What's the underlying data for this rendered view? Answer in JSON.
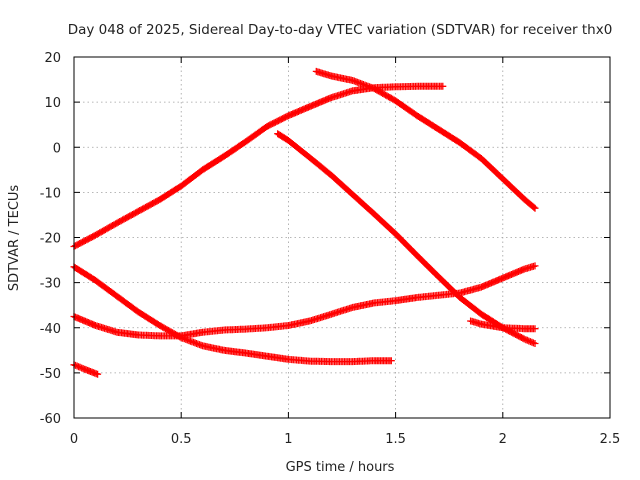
{
  "chart_data": {
    "type": "scatter",
    "title": "Day 048 of 2025, Sidereal Day-to-day VTEC variation (SDTVAR) for receiver thx0",
    "xlabel": "GPS time / hours",
    "ylabel": "SDTVAR / TECUs",
    "xlim": [
      0,
      2.5
    ],
    "ylim": [
      -60,
      20
    ],
    "xticks": [
      0,
      0.5,
      1,
      1.5,
      2,
      2.5
    ],
    "xtick_labels": [
      "0",
      "0.5",
      "1",
      "1.5",
      "2",
      "2.5"
    ],
    "yticks": [
      -60,
      -50,
      -40,
      -30,
      -20,
      -10,
      0,
      10,
      20
    ],
    "ytick_labels": [
      "-60",
      "-50",
      "-40",
      "-30",
      "-20",
      "-10",
      "0",
      "10",
      "20"
    ],
    "grid": true,
    "marker": "plus",
    "color": "#ff0000",
    "series": [
      {
        "name": "s1",
        "x": [
          0.0,
          0.1,
          0.2,
          0.3,
          0.4,
          0.5,
          0.6,
          0.7,
          0.8,
          0.9,
          1.0,
          1.1,
          1.2,
          1.3,
          1.4,
          1.5,
          1.6,
          1.72
        ],
        "y": [
          -22,
          -19.5,
          -16.8,
          -14.2,
          -11.6,
          -8.6,
          -5,
          -2,
          1.2,
          4.6,
          7,
          9,
          11,
          12.5,
          13.2,
          13.4,
          13.5,
          13.5
        ]
      },
      {
        "name": "s2",
        "x": [
          1.13,
          1.2,
          1.3,
          1.4,
          1.5,
          1.6,
          1.7,
          1.8,
          1.9,
          2.0,
          2.1,
          2.15
        ],
        "y": [
          16.8,
          15.8,
          14.8,
          13,
          10.3,
          7,
          4,
          1,
          -2.5,
          -7,
          -11.5,
          -13.5
        ]
      },
      {
        "name": "s3",
        "x": [
          0.95,
          1.0,
          1.1,
          1.2,
          1.3,
          1.4,
          1.5,
          1.6,
          1.7,
          1.8,
          1.9,
          2.0,
          2.1,
          2.15
        ],
        "y": [
          3,
          1.5,
          -2.3,
          -6.2,
          -10.5,
          -14.8,
          -19.2,
          -24,
          -28.7,
          -33.3,
          -37,
          -40,
          -42.5,
          -43.5
        ]
      },
      {
        "name": "s4",
        "x": [
          0.0,
          0.1,
          0.2,
          0.3,
          0.4,
          0.5,
          0.6,
          0.7,
          0.8,
          0.9,
          1.0,
          1.1,
          1.2,
          1.3,
          1.4,
          1.48
        ],
        "y": [
          -26.5,
          -29.5,
          -33,
          -36.5,
          -39.5,
          -42.2,
          -44,
          -45,
          -45.6,
          -46.3,
          -47,
          -47.4,
          -47.5,
          -47.5,
          -47.3,
          -47.3
        ]
      },
      {
        "name": "s5",
        "x": [
          0.0,
          0.1,
          0.2,
          0.3,
          0.4,
          0.5,
          0.6,
          0.7,
          0.8,
          0.9,
          1.0,
          1.1,
          1.2,
          1.3,
          1.4,
          1.5,
          1.6,
          1.7,
          1.8,
          1.9,
          2.0,
          2.1,
          2.15
        ],
        "y": [
          -37.5,
          -39.5,
          -41,
          -41.6,
          -41.8,
          -41.8,
          -41,
          -40.5,
          -40.3,
          -40,
          -39.5,
          -38.5,
          -37,
          -35.5,
          -34.5,
          -34,
          -33.3,
          -32.8,
          -32.3,
          -31,
          -29,
          -27,
          -26.3
        ]
      },
      {
        "name": "s6",
        "x": [
          1.85,
          1.9,
          2.0,
          2.1,
          2.15
        ],
        "y": [
          -38.5,
          -39.2,
          -40,
          -40.2,
          -40.2
        ]
      },
      {
        "name": "s7",
        "x": [
          0.0,
          0.05,
          0.11
        ],
        "y": [
          -48.2,
          -49.2,
          -50.3
        ]
      }
    ]
  }
}
